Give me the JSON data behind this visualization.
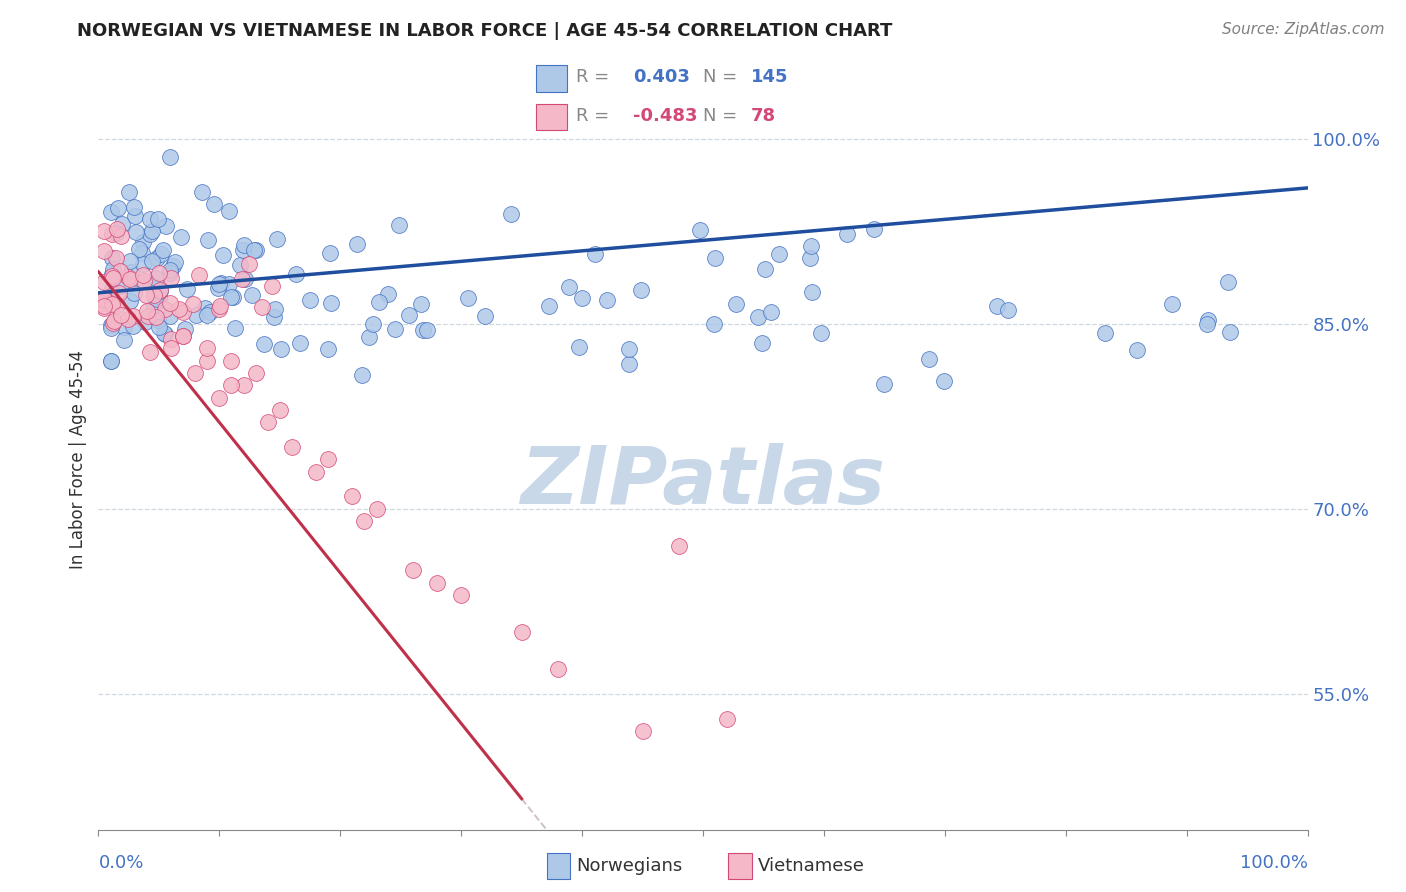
{
  "title": "NORWEGIAN VS VIETNAMESE IN LABOR FORCE | AGE 45-54 CORRELATION CHART",
  "source": "Source: ZipAtlas.com",
  "ylabel": "In Labor Force | Age 45-54",
  "ytick_vals": [
    0.55,
    0.7,
    0.85,
    1.0
  ],
  "xlim": [
    0.0,
    1.0
  ],
  "ylim": [
    0.44,
    1.04
  ],
  "legend_blue_r": "0.403",
  "legend_blue_n": "145",
  "legend_pink_r": "-0.483",
  "legend_pink_n": "78",
  "blue_fill": "#aec8e8",
  "blue_edge": "#4472c4",
  "pink_fill": "#f4b8c8",
  "pink_edge": "#d44878",
  "blue_line_color": "#1f4e9e",
  "pink_line_color": "#c0304a",
  "watermark_color": "#c8d8e8",
  "title_color": "#222222",
  "tick_color": "#4472c4",
  "grid_color": "#d0d8e0"
}
